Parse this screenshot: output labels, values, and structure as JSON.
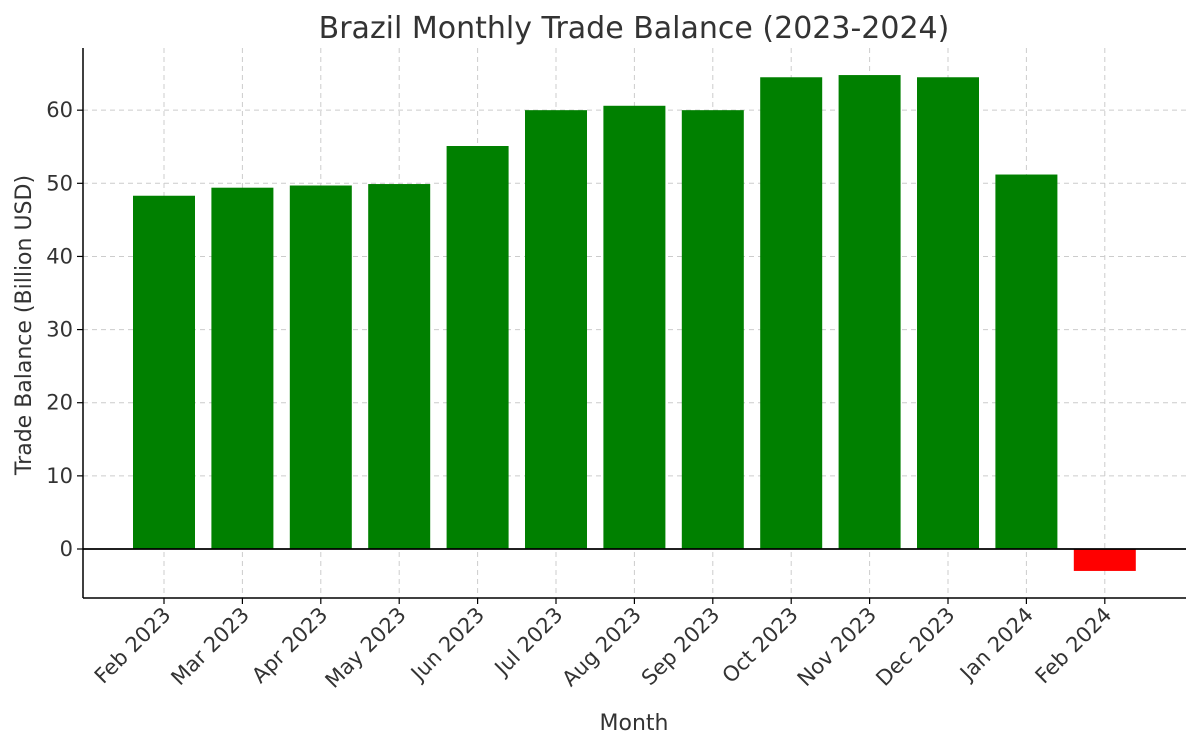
{
  "chart_data": {
    "type": "bar",
    "title": "Brazil Monthly Trade Balance (2023-2024)",
    "xlabel": "Month",
    "ylabel": "Trade Balance (Billion USD)",
    "categories": [
      "Feb 2023",
      "Mar 2023",
      "Apr 2023",
      "May 2023",
      "Jun 2023",
      "Jul 2023",
      "Aug 2023",
      "Sep 2023",
      "Oct 2023",
      "Nov 2023",
      "Dec 2023",
      "Jan 2024",
      "Feb 2024"
    ],
    "values": [
      48.3,
      49.4,
      49.7,
      49.9,
      55.1,
      60.0,
      60.6,
      60.0,
      64.5,
      64.8,
      64.5,
      51.2,
      -3.0
    ],
    "ylim": [
      -6.7,
      68.5
    ],
    "yticks": [
      0,
      10,
      20,
      30,
      40,
      50,
      60
    ],
    "grid": true,
    "colors": {
      "positive": "#008000",
      "negative": "#ff0000",
      "grid": "#cccccc",
      "axis": "#000000",
      "text": "#333333"
    }
  }
}
